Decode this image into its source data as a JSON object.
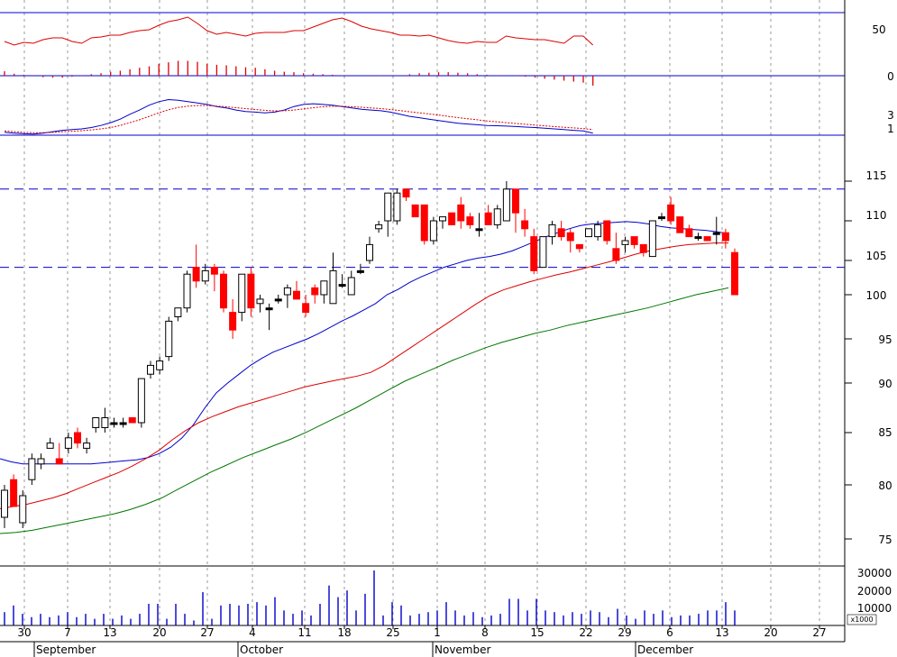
{
  "colors": {
    "up_candle_fill": "#ffffff",
    "down_candle_fill": "#ff0000",
    "flat_candle_fill": "#000000",
    "ma_blue": "#0000cc",
    "ma_red": "#dd0000",
    "ma_green": "#007700",
    "volume_bar": "#0000cc",
    "grid": "#999999",
    "panel_border": "#000000"
  },
  "chart_data": [
    {
      "type": "line",
      "panel": "oscillator",
      "y_ticks": [
        "50",
        "0"
      ],
      "ylim": [
        -40,
        85
      ],
      "series": [
        {
          "color": "#dd0000",
          "values": [
            46,
            42,
            45,
            44,
            48,
            50,
            50,
            46,
            44,
            50,
            51,
            53,
            53,
            56,
            58,
            59,
            64,
            68,
            70,
            73,
            66,
            58,
            54,
            56,
            54,
            52,
            55,
            56,
            56,
            56,
            58,
            58,
            62,
            66,
            70,
            72,
            68,
            63,
            60,
            58,
            56,
            53,
            53,
            52,
            53,
            50,
            47,
            45,
            44,
            46,
            45,
            45,
            52,
            50,
            49,
            48,
            48,
            46,
            44,
            52,
            52,
            42
          ]
        }
      ],
      "histogram": [
        9,
        4,
        2,
        1,
        -3,
        -4,
        -4,
        -2,
        -1,
        3,
        5,
        8,
        10,
        13,
        16,
        19,
        24,
        27,
        30,
        30,
        28,
        24,
        22,
        21,
        19,
        17,
        16,
        13,
        10,
        8,
        7,
        5,
        4,
        3,
        2,
        1,
        0,
        0,
        -1,
        -1,
        0,
        1,
        3,
        5,
        6,
        7,
        7,
        6,
        5,
        3,
        2,
        1,
        0,
        -1,
        -2,
        -4,
        -6,
        -8,
        -10,
        -12,
        -14,
        -20
      ]
    },
    {
      "type": "line",
      "panel": "macd",
      "y_ticks": [
        "3",
        "1"
      ],
      "ylim": [
        0.4,
        4.6
      ],
      "series": [
        {
          "color": "#0000cc",
          "values": [
            1.0,
            0.95,
            0.9,
            0.88,
            0.95,
            1.05,
            1.15,
            1.2,
            1.25,
            1.35,
            1.5,
            1.7,
            1.95,
            2.3,
            2.6,
            2.95,
            3.2,
            3.35,
            3.3,
            3.2,
            3.1,
            3.0,
            2.85,
            2.75,
            2.6,
            2.5,
            2.45,
            2.4,
            2.45,
            2.6,
            2.85,
            3.0,
            3.05,
            3.0,
            2.95,
            2.85,
            2.75,
            2.65,
            2.6,
            2.55,
            2.45,
            2.3,
            2.15,
            2.05,
            1.95,
            1.85,
            1.75,
            1.65,
            1.6,
            1.55,
            1.5,
            1.48,
            1.45,
            1.42,
            1.38,
            1.35,
            1.3,
            1.25,
            1.2,
            1.15,
            1.1,
            0.95
          ]
        },
        {
          "color": "#dd0000",
          "values": [
            1.1,
            1.05,
            1.0,
            0.98,
            0.98,
            1.0,
            1.05,
            1.08,
            1.12,
            1.18,
            1.25,
            1.35,
            1.5,
            1.7,
            1.9,
            2.15,
            2.4,
            2.62,
            2.78,
            2.88,
            2.92,
            2.92,
            2.88,
            2.83,
            2.77,
            2.7,
            2.64,
            2.58,
            2.54,
            2.55,
            2.6,
            2.68,
            2.77,
            2.83,
            2.87,
            2.87,
            2.84,
            2.8,
            2.75,
            2.7,
            2.64,
            2.56,
            2.48,
            2.4,
            2.32,
            2.24,
            2.15,
            2.06,
            1.98,
            1.9,
            1.82,
            1.76,
            1.7,
            1.64,
            1.58,
            1.52,
            1.47,
            1.42,
            1.37,
            1.32,
            1.27,
            1.2
          ]
        }
      ]
    },
    {
      "type": "candlestick",
      "panel": "price",
      "y_ticks": [
        "115",
        "110",
        "105",
        "100",
        "95",
        "90",
        "85",
        "80",
        "75"
      ],
      "ylim": [
        72.5,
        118
      ],
      "horizontal_lines": [
        114,
        104
      ],
      "candles": [
        [
          77,
          80,
          76,
          79.5
        ],
        [
          80.5,
          81,
          78,
          78
        ],
        [
          76.5,
          79.5,
          76,
          79
        ],
        [
          80.5,
          83,
          80,
          82.5
        ],
        [
          82,
          83,
          81.5,
          82.5
        ],
        [
          83.5,
          84.5,
          83.5,
          84
        ],
        [
          82.5,
          84,
          82,
          82
        ],
        [
          83.5,
          85,
          83,
          84.5
        ],
        [
          85,
          85.5,
          83.5,
          84
        ],
        [
          83.5,
          84.5,
          83,
          84
        ],
        [
          85.5,
          86.5,
          85,
          86.5
        ],
        [
          85.5,
          87.5,
          85,
          86.5
        ],
        [
          86,
          86.5,
          85.5,
          86
        ],
        [
          86,
          86.5,
          85.5,
          86
        ],
        [
          86.5,
          86.5,
          86,
          86
        ],
        [
          86,
          90.5,
          85.5,
          90.5
        ],
        [
          91,
          92.5,
          90.5,
          92
        ],
        [
          91.5,
          93,
          91,
          92.5
        ],
        [
          93,
          97.5,
          92.5,
          97
        ],
        [
          97.5,
          98.5,
          97,
          98.5
        ],
        [
          98.5,
          103.5,
          98,
          103
        ],
        [
          104,
          107,
          101,
          102
        ],
        [
          102,
          104.5,
          101.5,
          103.5
        ],
        [
          104,
          104.5,
          100.5,
          103
        ],
        [
          103,
          103.5,
          98,
          98.5
        ],
        [
          98,
          99.5,
          95,
          96
        ],
        [
          98,
          103,
          97,
          103
        ],
        [
          103,
          104,
          97.5,
          98.5
        ],
        [
          99,
          100,
          98,
          99.5
        ],
        [
          98.5,
          99,
          96,
          98.5
        ],
        [
          99.5,
          100,
          99,
          99.5
        ],
        [
          100,
          101.5,
          98.5,
          101
        ],
        [
          100.5,
          102,
          99.5,
          99.5
        ],
        [
          99,
          100,
          97.5,
          98
        ],
        [
          101,
          101.5,
          99,
          100
        ],
        [
          100,
          102,
          99,
          102
        ],
        [
          99,
          106,
          99,
          103.5
        ],
        [
          101.5,
          103,
          101,
          101.5
        ],
        [
          100,
          103.5,
          100,
          102.5
        ],
        [
          103.5,
          104.5,
          103,
          103.5
        ],
        [
          105,
          108,
          104.5,
          107
        ],
        [
          109,
          110,
          108.5,
          109.5
        ],
        [
          110,
          113.5,
          108,
          113.5
        ],
        [
          110,
          114,
          109.5,
          113.5
        ],
        [
          114,
          114,
          112.5,
          113
        ],
        [
          112,
          112,
          110.5,
          110.5
        ],
        [
          112,
          112,
          107,
          107.5
        ],
        [
          107.5,
          110.5,
          107,
          110
        ],
        [
          110,
          110.5,
          109,
          110.5
        ],
        [
          111,
          111,
          109.5,
          109.5
        ],
        [
          112,
          113,
          109,
          110
        ],
        [
          110.5,
          111,
          109,
          109.5
        ],
        [
          109,
          111,
          108,
          109
        ],
        [
          111,
          112,
          109.5,
          109.5
        ],
        [
          109.5,
          112,
          109,
          111.5
        ],
        [
          110,
          115,
          110,
          114
        ],
        [
          114,
          114,
          108.5,
          111
        ],
        [
          110,
          111.5,
          108,
          109
        ],
        [
          108,
          109,
          103,
          103.5
        ],
        [
          104,
          108,
          104,
          108
        ],
        [
          108,
          110,
          107,
          109.5
        ],
        [
          109,
          110,
          107.5,
          108
        ],
        [
          108.5,
          109,
          106,
          107.5
        ],
        [
          107,
          107,
          106,
          106.5
        ],
        [
          108,
          109,
          108,
          109
        ],
        [
          108,
          110,
          107.5,
          109.5
        ],
        [
          110,
          110,
          107,
          107.5
        ],
        [
          106.5,
          108.5,
          104.5,
          105
        ],
        [
          107,
          108,
          106,
          107.5
        ],
        [
          108,
          108,
          106.5,
          107
        ],
        [
          107,
          107,
          105.5,
          106
        ],
        [
          105.5,
          110,
          105.5,
          110
        ],
        [
          110.5,
          111,
          110,
          110.5
        ],
        [
          112,
          113,
          109.5,
          110
        ],
        [
          110.5,
          110.5,
          108.5,
          108.5
        ],
        [
          109,
          109.5,
          108,
          108
        ],
        [
          108,
          108.5,
          107.5,
          108
        ],
        [
          108,
          108,
          107.5,
          107.5
        ],
        [
          108.5,
          110.5,
          107,
          108.5
        ],
        [
          108.5,
          109,
          106.5,
          107.5
        ],
        [
          106,
          106.5,
          100,
          100
        ]
      ],
      "series": [
        {
          "color": "#0000cc",
          "values": [
            82.5,
            82.2,
            82.0,
            82.0,
            82.0,
            82.0,
            82.0,
            82.0,
            82.0,
            82.1,
            82.2,
            82.3,
            82.4,
            82.6,
            83.0,
            83.6,
            84.5,
            85.8,
            87.5,
            89.0,
            90.0,
            91.0,
            92.0,
            92.8,
            93.5,
            94.0,
            94.5,
            95.0,
            95.6,
            96.3,
            97.0,
            97.6,
            98.3,
            99.0,
            100.0,
            100.8,
            101.8,
            102.6,
            103.3,
            104.0,
            104.5,
            105.0,
            105.3,
            105.5,
            105.8,
            106.2,
            106.8,
            107.4,
            108.0,
            108.5,
            109.0,
            109.4,
            109.6,
            109.7,
            109.8,
            109.9,
            109.8,
            109.6,
            109.3,
            109.1,
            109.0,
            108.9,
            108.8,
            108.6,
            108.4
          ]
        },
        {
          "color": "#dd0000",
          "values": [
            77.8,
            78.0,
            78.2,
            78.5,
            78.8,
            79.2,
            79.7,
            80.2,
            80.7,
            81.2,
            81.8,
            82.5,
            83.3,
            84.3,
            85.2,
            86.0,
            86.6,
            87.1,
            87.6,
            88.0,
            88.4,
            88.8,
            89.2,
            89.6,
            89.9,
            90.2,
            90.5,
            90.8,
            91.2,
            92.0,
            93.0,
            94.0,
            95.0,
            96.0,
            97.0,
            98.0,
            99.0,
            99.9,
            100.7,
            101.3,
            101.9,
            102.4,
            102.9,
            103.3,
            103.8,
            104.3,
            104.8,
            105.3,
            105.8,
            106.2,
            106.5,
            106.8,
            107.0,
            107.1,
            107.2,
            107.2
          ]
        },
        {
          "color": "#007700",
          "values": [
            75.5,
            75.6,
            75.8,
            76.1,
            76.4,
            76.7,
            77.0,
            77.3,
            77.7,
            78.2,
            78.8,
            79.6,
            80.4,
            81.2,
            81.9,
            82.6,
            83.2,
            83.8,
            84.4,
            85.1,
            85.9,
            86.7,
            87.5,
            88.4,
            89.3,
            90.2,
            91.0,
            91.8,
            92.6,
            93.3,
            94.0,
            94.6,
            95.1,
            95.6,
            96.0,
            96.5,
            96.9,
            97.3,
            97.7,
            98.1,
            98.5,
            99.0,
            99.5,
            100.0,
            100.5,
            101.0
          ]
        }
      ]
    },
    {
      "type": "bar",
      "panel": "volume",
      "y_ticks": [
        "30000",
        "20000",
        "10000"
      ],
      "unit_label": "x1000",
      "ylim": [
        0,
        36000
      ],
      "values": [
        8000,
        12000,
        7000,
        5000,
        7000,
        5000,
        6000,
        8000,
        5000,
        7000,
        4000,
        7000,
        4000,
        6000,
        4000,
        7000,
        13000,
        13000,
        4000,
        13000,
        7000,
        3000,
        20000,
        4000,
        12000,
        13000,
        12000,
        13000,
        14000,
        12000,
        17000,
        9000,
        7000,
        9000,
        6000,
        13000,
        24000,
        17000,
        21000,
        9000,
        19000,
        33000,
        6000,
        14000,
        12000,
        6000,
        7000,
        8000,
        9000,
        14000,
        9000,
        6000,
        8000,
        5000,
        6000,
        7000,
        16000,
        16000,
        9000,
        16000,
        9000,
        8000,
        6000,
        8000,
        7000,
        9000,
        8000,
        5000,
        10000,
        6000,
        4000,
        9000,
        7000,
        9000,
        5000,
        6000,
        6000,
        7000,
        9000,
        9000,
        14000,
        9000
      ]
    }
  ],
  "x_axis": {
    "day_ticks": [
      "30",
      "7",
      "13",
      "20",
      "27",
      "4",
      "11",
      "18",
      "25",
      "1",
      "8",
      "15",
      "22",
      "29",
      "6",
      "13",
      "20",
      "27"
    ],
    "month_labels": [
      "September",
      "October",
      "November",
      "December"
    ]
  }
}
